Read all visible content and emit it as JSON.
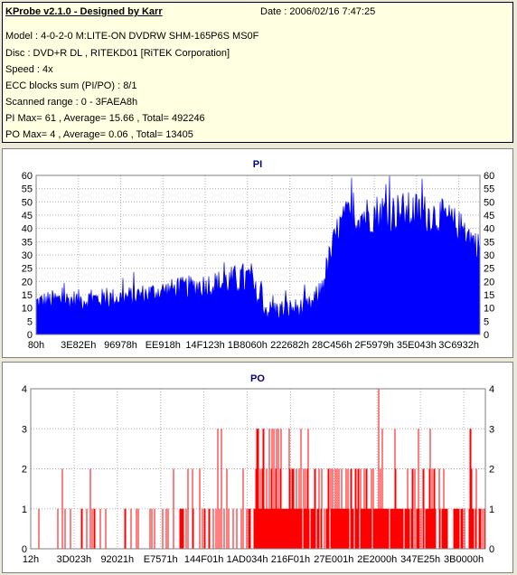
{
  "info": {
    "title": "KProbe v2.1.0 - Designed by Karr",
    "date": "Date : 2006/02/16 7:47:25",
    "lines": [
      "Model : 4-0-2-0 M:LITE-ON DVDRW SHM-165P6S MS0F",
      "Disc : DVD+R DL , RITEKD01 [RiTEK Corporation]",
      "Speed : 4x",
      "ECC blocks sum (PI/PO) : 8/1",
      "Scanned range : 0 - 3FAEA8h",
      "PI Max= 61 , Average= 15.66 , Total= 492246",
      "PO Max= 4 , Average= 0.06 , Total= 13405"
    ]
  },
  "chart_data": [
    {
      "type": "area",
      "title": "PI",
      "color": "#0000ff",
      "ylim": [
        0,
        60
      ],
      "yticks": [
        0,
        5,
        10,
        15,
        20,
        25,
        30,
        35,
        40,
        45,
        50,
        55,
        60
      ],
      "xtick_labels": [
        "80h",
        "3E82Eh",
        "96978h",
        "EE918h",
        "14F123h",
        "1B8060h",
        "222682h",
        "28C456h",
        "2F5979h",
        "35E043h",
        "3C6932h"
      ],
      "grid": true,
      "profile": {
        "x": [
          0.0,
          0.04,
          0.1,
          0.2,
          0.3,
          0.4,
          0.48,
          0.5,
          0.52,
          0.6,
          0.62,
          0.64,
          0.66,
          0.68,
          0.7,
          0.78,
          0.86,
          0.92,
          0.96,
          1.0
        ],
        "mean": [
          12,
          13,
          13,
          14,
          17,
          19,
          21,
          14,
          9,
          10,
          11,
          16,
          28,
          40,
          44,
          46,
          46,
          44,
          40,
          33
        ],
        "spread": [
          4,
          4,
          4,
          4,
          4,
          5,
          7,
          4,
          4,
          4,
          4,
          5,
          6,
          6,
          7,
          8,
          8,
          7,
          6,
          5
        ]
      }
    },
    {
      "type": "bar",
      "title": "PO",
      "color": "#ff0000",
      "ylim": [
        0,
        4
      ],
      "yticks": [
        0,
        1,
        2,
        3,
        4
      ],
      "xtick_labels": [
        "12h",
        "3D023h",
        "92021h",
        "E7571h",
        "144F01h",
        "1AD034h",
        "216F01h",
        "27E001h",
        "2E2000h",
        "347E25h",
        "3B0000h"
      ],
      "grid": true,
      "density": {
        "x": [
          0.0,
          0.1,
          0.2,
          0.3,
          0.4,
          0.48,
          0.5,
          0.55,
          0.6,
          0.7,
          0.8,
          0.9,
          0.95,
          1.0
        ],
        "p1": [
          0.15,
          0.15,
          0.18,
          0.2,
          0.25,
          0.35,
          0.6,
          0.55,
          0.55,
          0.55,
          0.5,
          0.45,
          0.4,
          0.35
        ],
        "p2": [
          0.01,
          0.01,
          0.02,
          0.02,
          0.05,
          0.1,
          0.35,
          0.35,
          0.3,
          0.3,
          0.3,
          0.25,
          0.2,
          0.18
        ],
        "p3": [
          0.0,
          0.0,
          0.0,
          0.005,
          0.01,
          0.02,
          0.08,
          0.06,
          0.05,
          0.05,
          0.04,
          0.04,
          0.05,
          0.04
        ],
        "p4": [
          0.0,
          0.0,
          0.0,
          0.0,
          0.0,
          0.0,
          0.01,
          0.01,
          0.005,
          0.01,
          0.01,
          0.005,
          0.0,
          0.0
        ]
      }
    }
  ]
}
